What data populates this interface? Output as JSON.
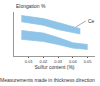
{
  "chart_data": {
    "type": "band",
    "y_label": "Elongation %",
    "x_label": "Sulfur content (%)",
    "caption": "Measurements made in thickness direction",
    "series": [
      {
        "color": "#8fc4e8",
        "x": [
          0.005,
          0.02,
          0.03,
          0.045
        ],
        "upper": [
          9.2,
          8.5,
          7.6,
          6.2
        ],
        "lower": [
          7.8,
          7.0,
          6.0,
          5.0
        ]
      },
      {
        "color": "#8fc4e8",
        "x": [
          0.005,
          0.02,
          0.03,
          0.04,
          0.05
        ],
        "upper": [
          5.8,
          5.2,
          4.2,
          3.0,
          2.6
        ],
        "lower": [
          3.8,
          3.3,
          2.6,
          1.8,
          1.5
        ]
      }
    ],
    "annotations": [
      {
        "text": "Ce",
        "x": 0.042,
        "y": 6.6
      }
    ],
    "xlim": [
      0,
      0.055
    ],
    "xticks": [
      0.01,
      0.02,
      0.03,
      0.04,
      0.05
    ],
    "ylim": [
      0,
      10
    ],
    "yticks": [],
    "tick_labels": "x",
    "grid": false
  }
}
